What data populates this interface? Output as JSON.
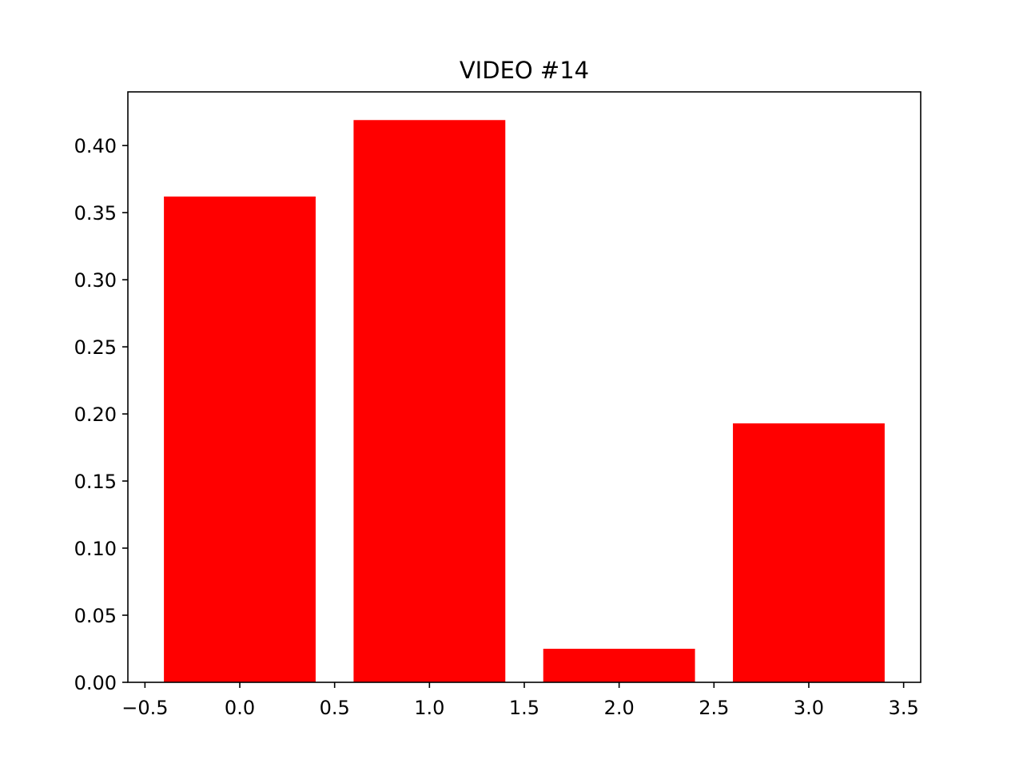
{
  "chart_data": {
    "type": "bar",
    "title": "VIDEO #14",
    "xlabel": "",
    "ylabel": "",
    "bar_width": 0.8,
    "x": [
      0,
      1,
      2,
      3
    ],
    "values": [
      0.362,
      0.419,
      0.025,
      0.193
    ],
    "xlim": [
      -0.59,
      3.59
    ],
    "ylim": [
      0.0,
      0.44
    ],
    "x_ticks": [
      -0.5,
      0.0,
      0.5,
      1.0,
      1.5,
      2.0,
      2.5,
      3.0,
      3.5
    ],
    "x_tick_labels": [
      "−0.5",
      "0.0",
      "0.5",
      "1.0",
      "1.5",
      "2.0",
      "2.5",
      "3.0",
      "3.5"
    ],
    "y_ticks": [
      0.0,
      0.05,
      0.1,
      0.15,
      0.2,
      0.25,
      0.3,
      0.35,
      0.4
    ],
    "y_tick_labels": [
      "0.00",
      "0.05",
      "0.10",
      "0.15",
      "0.20",
      "0.25",
      "0.30",
      "0.35",
      "0.40"
    ],
    "bar_color": "#ff0000",
    "grid": false,
    "legend": "none"
  }
}
